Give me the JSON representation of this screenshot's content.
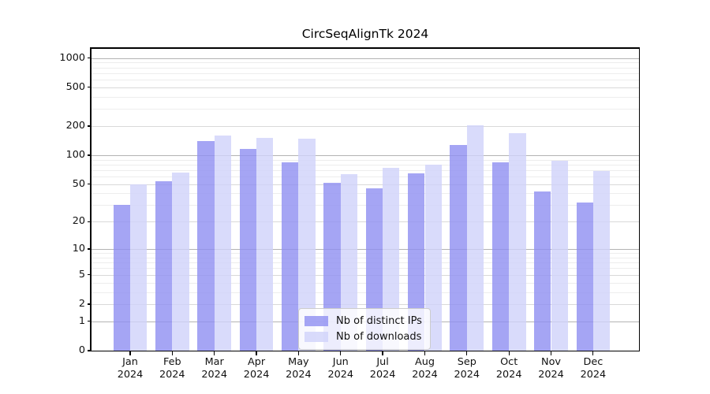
{
  "title": "CircSeqAlignTk 2024",
  "chart_data": {
    "type": "bar",
    "title": "CircSeqAlignTk 2024",
    "categories": [
      "Jan 2024",
      "Feb 2024",
      "Mar 2024",
      "Apr 2024",
      "May 2024",
      "Jun 2024",
      "Jul 2024",
      "Aug 2024",
      "Sep 2024",
      "Oct 2024",
      "Nov 2024",
      "Dec 2024"
    ],
    "series": [
      {
        "name": "Nb of distinct IPs",
        "color": "#8e8ef1",
        "values": [
          30,
          54,
          140,
          115,
          85,
          52,
          45,
          65,
          128,
          85,
          42,
          32
        ]
      },
      {
        "name": "Nb of downloads",
        "color": "#cfd2fa",
        "values": [
          50,
          66,
          160,
          152,
          148,
          64,
          74,
          80,
          205,
          168,
          88,
          68
        ]
      }
    ],
    "bar_alpha": 0.8,
    "yscale": "log1p",
    "yticks": [
      0,
      1,
      2,
      5,
      10,
      20,
      50,
      100,
      200,
      500,
      1000
    ],
    "ylim": [
      0,
      1230
    ],
    "xlabel": "",
    "ylabel": "",
    "grid": true,
    "grid_major_ticks": [
      1,
      10,
      100,
      1000
    ],
    "grid_mid_ticks": [
      2,
      5,
      20,
      50,
      200,
      500
    ],
    "grid_major_color": "#b3b3b3",
    "grid_mid_color": "#d9d9d9",
    "grid_minor_color": "#ededed",
    "axis_color": "#000000",
    "legend_position": "lower center"
  }
}
